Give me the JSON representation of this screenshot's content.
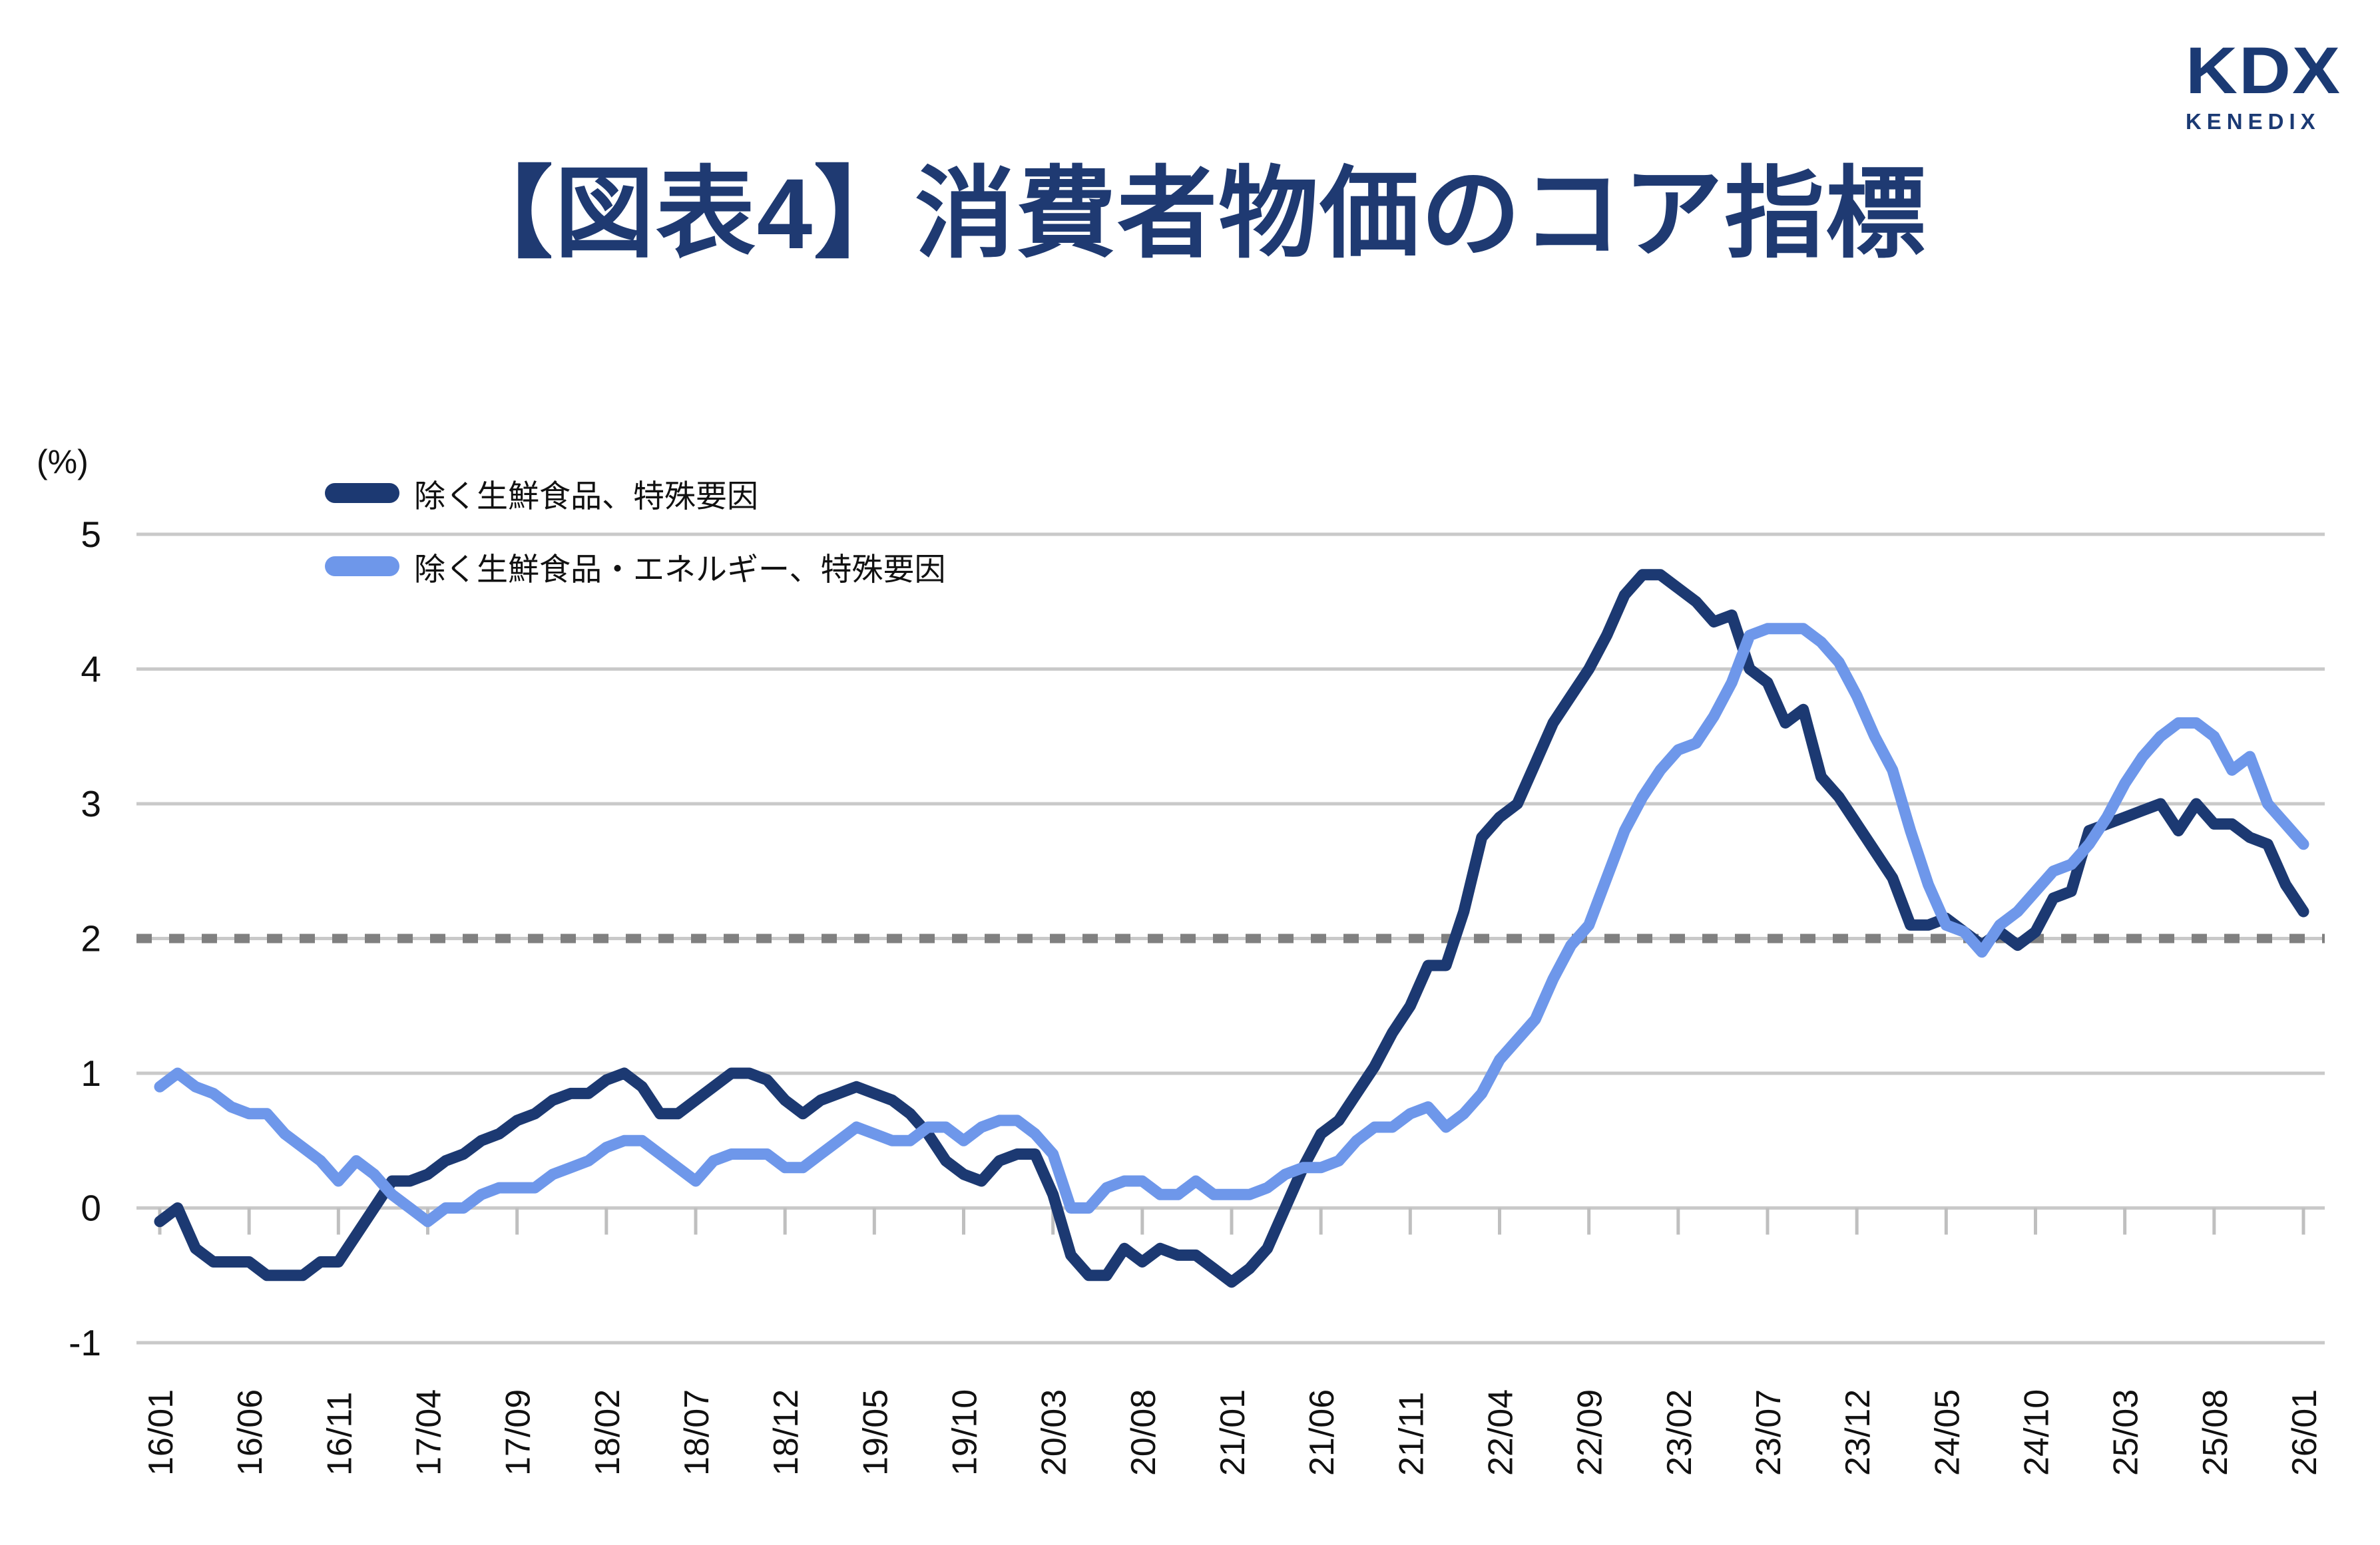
{
  "logo": {
    "primary": "KDX",
    "secondary": "KENEDIX",
    "color": "#1b3a74"
  },
  "title": "【図表4】消費者物価のコア指標",
  "chart_data": {
    "type": "line",
    "title": "【図表4】消費者物価のコア指標",
    "unit_label": "(%)",
    "ylim": [
      -1,
      5
    ],
    "y_ticks": [
      5,
      4,
      3,
      2,
      1,
      0,
      -1
    ],
    "grid": "horizontal",
    "legend_position": "top-left-inside",
    "reference_line": {
      "value": 2,
      "style": "dashed",
      "color": "#808080"
    },
    "x_monthly_start": "2016-01",
    "x_monthly_end": "2026-01",
    "x_ticklabels": [
      "16/01",
      "16/06",
      "16/11",
      "17/04",
      "17/09",
      "18/02",
      "18/07",
      "18/12",
      "19/05",
      "19/10",
      "20/03",
      "20/08",
      "21/01",
      "21/06",
      "21/11",
      "22/04",
      "22/09",
      "23/02",
      "23/07",
      "23/12",
      "24/05",
      "24/10",
      "25/03",
      "25/08",
      "26/01"
    ],
    "series": [
      {
        "name": "除く生鮮食品、特殊要因",
        "color": "#1c3972",
        "values": [
          -0.1,
          0.0,
          -0.3,
          -0.4,
          -0.4,
          -0.4,
          -0.5,
          -0.5,
          -0.5,
          -0.4,
          -0.4,
          -0.2,
          0.0,
          0.2,
          0.2,
          0.25,
          0.35,
          0.4,
          0.5,
          0.55,
          0.65,
          0.7,
          0.8,
          0.85,
          0.85,
          0.95,
          1.0,
          0.9,
          0.7,
          0.7,
          0.8,
          0.9,
          1.0,
          1.0,
          0.95,
          0.8,
          0.7,
          0.8,
          0.85,
          0.9,
          0.85,
          0.8,
          0.7,
          0.55,
          0.35,
          0.25,
          0.2,
          0.35,
          0.4,
          0.4,
          0.1,
          -0.35,
          -0.5,
          -0.5,
          -0.3,
          -0.4,
          -0.3,
          -0.35,
          -0.35,
          -0.45,
          -0.55,
          -0.45,
          -0.3,
          0.0,
          0.3,
          0.55,
          0.65,
          0.85,
          1.05,
          1.3,
          1.5,
          1.8,
          1.8,
          2.2,
          2.75,
          2.9,
          3.0,
          3.3,
          3.6,
          3.8,
          4.0,
          4.25,
          4.55,
          4.7,
          4.7,
          4.6,
          4.5,
          4.35,
          4.4,
          4.0,
          3.9,
          3.6,
          3.7,
          3.2,
          3.05,
          2.85,
          2.65,
          2.45,
          2.1,
          2.1,
          2.15,
          2.05,
          1.95,
          2.05,
          1.95,
          2.05,
          2.3,
          2.35,
          2.8,
          2.85,
          2.9,
          2.95,
          3.0,
          2.8,
          3.0,
          2.85,
          2.85,
          2.75,
          2.7,
          2.4,
          2.2
        ]
      },
      {
        "name": "除く生鮮食品・エネルギー、特殊要因",
        "color": "#6e97ea",
        "values": [
          0.9,
          1.0,
          0.9,
          0.85,
          0.75,
          0.7,
          0.7,
          0.55,
          0.45,
          0.35,
          0.2,
          0.35,
          0.25,
          0.1,
          0.0,
          -0.1,
          0.0,
          0.0,
          0.1,
          0.15,
          0.15,
          0.15,
          0.25,
          0.3,
          0.35,
          0.45,
          0.5,
          0.5,
          0.4,
          0.3,
          0.2,
          0.35,
          0.4,
          0.4,
          0.4,
          0.3,
          0.3,
          0.4,
          0.5,
          0.6,
          0.55,
          0.5,
          0.5,
          0.6,
          0.6,
          0.5,
          0.6,
          0.65,
          0.65,
          0.55,
          0.4,
          0.0,
          0.0,
          0.15,
          0.2,
          0.2,
          0.1,
          0.1,
          0.2,
          0.1,
          0.1,
          0.1,
          0.15,
          0.25,
          0.3,
          0.3,
          0.35,
          0.5,
          0.6,
          0.6,
          0.7,
          0.75,
          0.6,
          0.7,
          0.85,
          1.1,
          1.25,
          1.4,
          1.7,
          1.95,
          2.1,
          2.45,
          2.8,
          3.05,
          3.25,
          3.4,
          3.45,
          3.65,
          3.9,
          4.25,
          4.3,
          4.3,
          4.3,
          4.2,
          4.05,
          3.8,
          3.5,
          3.25,
          2.8,
          2.4,
          2.1,
          2.05,
          1.9,
          2.1,
          2.2,
          2.35,
          2.5,
          2.55,
          2.7,
          2.9,
          3.15,
          3.35,
          3.5,
          3.6,
          3.6,
          3.5,
          3.25,
          3.35,
          3.0,
          2.85,
          2.7
        ]
      }
    ],
    "style": {
      "gridline_color": "#c9c9c9",
      "tick_color": "#bfbfbf",
      "axis_text_color": "#111111",
      "line_width": 17
    }
  }
}
